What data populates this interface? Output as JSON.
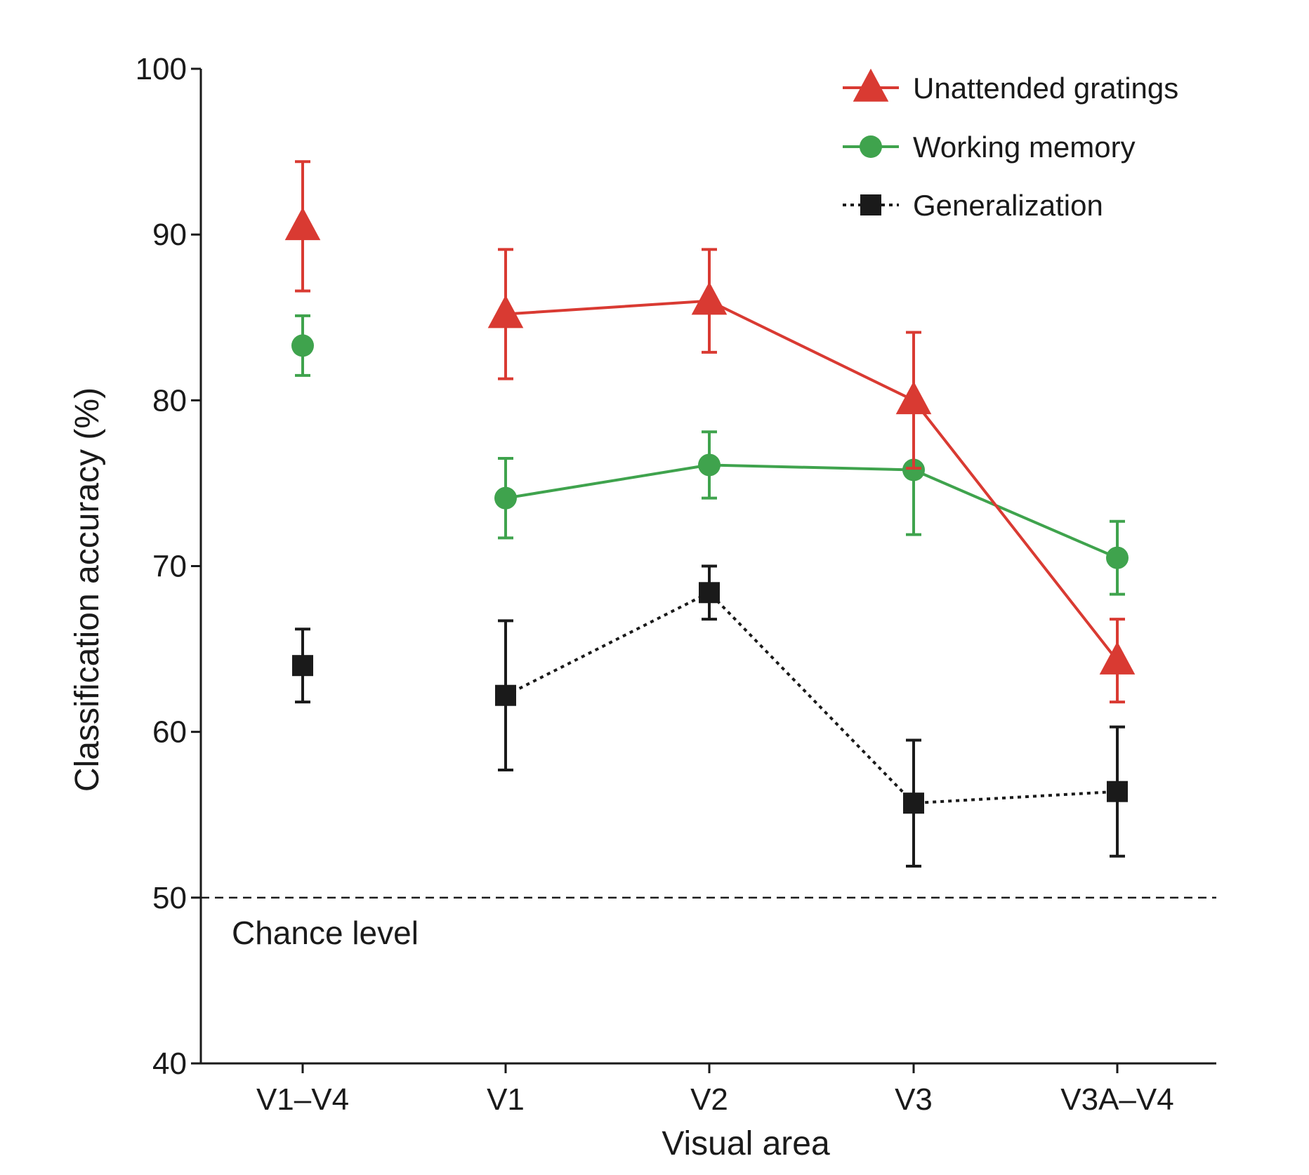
{
  "chart_data": {
    "type": "line",
    "categories": [
      "V1–V4",
      "V1",
      "V2",
      "V3",
      "V3A–V4"
    ],
    "xlabel": "Visual area",
    "ylabel": "Classification accuracy (%)",
    "ylim": [
      40,
      100
    ],
    "yticks": [
      "40",
      "50",
      "60",
      "70",
      "80",
      "90",
      "100"
    ],
    "grid": false,
    "legend_position": "top-right",
    "reference_line": {
      "y": 50,
      "style": "dashed",
      "label": "Chance level"
    },
    "series": [
      {
        "name": "Unattended gratings",
        "color": "#d93a32",
        "marker": "triangle",
        "line_style": "solid",
        "connected_from_index": 1,
        "values": [
          90.5,
          85.2,
          86.0,
          80.0,
          64.3
        ],
        "error": [
          3.9,
          3.9,
          3.1,
          4.1,
          2.5
        ]
      },
      {
        "name": "Working memory",
        "color": "#3fa34d",
        "marker": "circle",
        "line_style": "solid",
        "connected_from_index": 1,
        "values": [
          83.3,
          74.1,
          76.1,
          75.8,
          70.5
        ],
        "error": [
          1.8,
          2.4,
          2.0,
          3.9,
          2.2
        ]
      },
      {
        "name": "Generalization",
        "color": "#1a1a1a",
        "marker": "square",
        "line_style": "dotted",
        "connected_from_index": 1,
        "values": [
          64.0,
          62.2,
          68.4,
          55.7,
          56.4
        ],
        "error": [
          2.2,
          4.5,
          1.6,
          3.8,
          3.9
        ]
      }
    ]
  }
}
